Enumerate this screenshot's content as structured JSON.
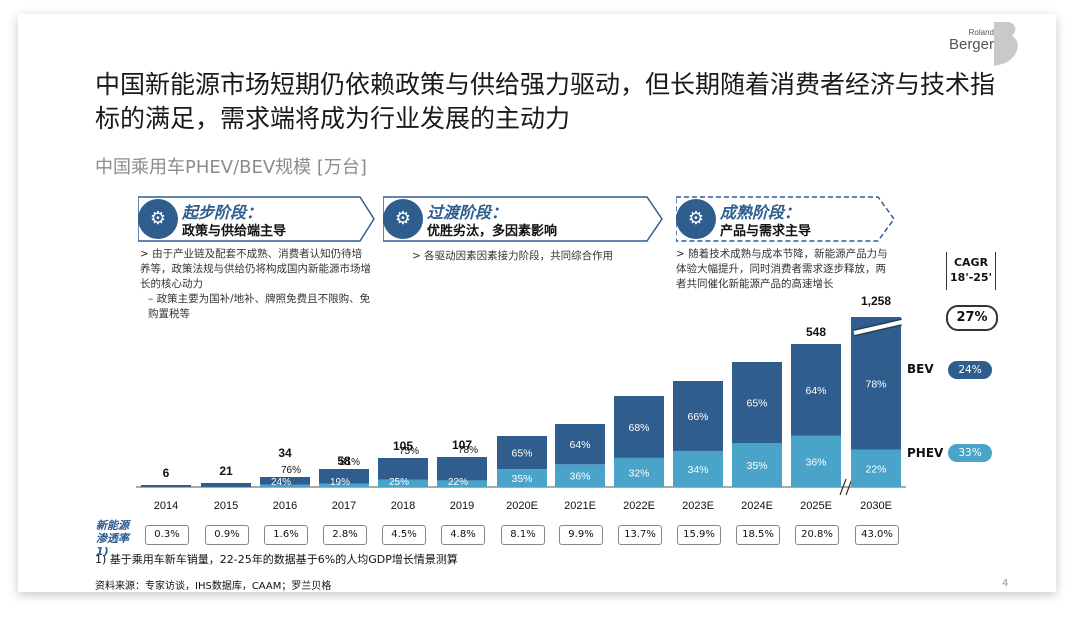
{
  "logo": {
    "line1": "Roland",
    "line2": "Berger"
  },
  "title": "中国新能源市场短期仍依赖政策与供给强力驱动，但长期随着消费者经济与技术指标的满足，需求端将成为行业发展的主动力",
  "subtitle": "中国乘用车PHEV/BEV规模 [万台]",
  "stages": [
    {
      "name": "起步阶段：",
      "desc": "政策与供给端主导",
      "bullets": [
        "> 由于产业链及配套不成熟、消费者认知仍待培养等，政策法规与供给仍将构成国内新能源市场增长的核心动力",
        "– 政策主要为国补/地补、牌照免费且不限购、免购置税等"
      ]
    },
    {
      "name": "过渡阶段：",
      "desc": "优胜劣汰，多因素影响",
      "bullets": [
        "> 各驱动因素因素接力阶段，共同综合作用"
      ]
    },
    {
      "name": "成熟阶段：",
      "desc": "产品与需求主导",
      "bullets": [
        "> 随着技术成熟与成本节降，新能源产品力与体验大幅提升，同时消费者需求逐步释放，两者共同催化新能源产品的高速增长"
      ]
    }
  ],
  "cagr": {
    "label_line1": "CAGR",
    "label_line2": "18'-25'",
    "total": "27%",
    "bev_label": "BEV",
    "bev": "24%",
    "phev_label": "PHEV",
    "phev": "33%"
  },
  "colors": {
    "bev": "#2f5d8e",
    "phev": "#4aa3c8",
    "accent": "#2f5d8e"
  },
  "chart_data": {
    "type": "bar",
    "title": "中国乘用车PHEV/BEV规模 [万台]",
    "categories": [
      "2014",
      "2015",
      "2016",
      "2017",
      "2018",
      "2019",
      "2020E",
      "2021E",
      "2022E",
      "2023E",
      "2024E",
      "2025E",
      "2030E"
    ],
    "totals": [
      6,
      21,
      34,
      58,
      105,
      107,
      null,
      null,
      null,
      null,
      null,
      548,
      1258
    ],
    "total_labels": [
      "6",
      "21",
      "34",
      "58",
      "105",
      "107",
      "",
      "",
      "",
      "",
      "",
      "548",
      "1,258"
    ],
    "series": [
      {
        "name": "PHEV",
        "labels": [
          "",
          "",
          "24%",
          "19%",
          "25%",
          "22%",
          "35%",
          "36%",
          "32%",
          "34%",
          "35%",
          "36%",
          "22%"
        ]
      },
      {
        "name": "BEV",
        "labels": [
          "",
          "",
          "76%",
          "81%",
          "75%",
          "78%",
          "65%",
          "64%",
          "68%",
          "66%",
          "65%",
          "64%",
          "78%"
        ]
      }
    ],
    "penetration_label": "新能源渗透率1)",
    "penetration": [
      "0.3%",
      "0.9%",
      "1.6%",
      "2.8%",
      "4.5%",
      "4.8%",
      "8.1%",
      "9.9%",
      "13.7%",
      "15.9%",
      "18.5%",
      "20.8%",
      "43.0%"
    ]
  },
  "footnote": "1) 基于乘用车新车销量，22-25年的数据基于6%的人均GDP增长情景测算",
  "source": "资料来源：专家访谈，IHS数据库，CAAM；罗兰贝格",
  "page_number": "4"
}
